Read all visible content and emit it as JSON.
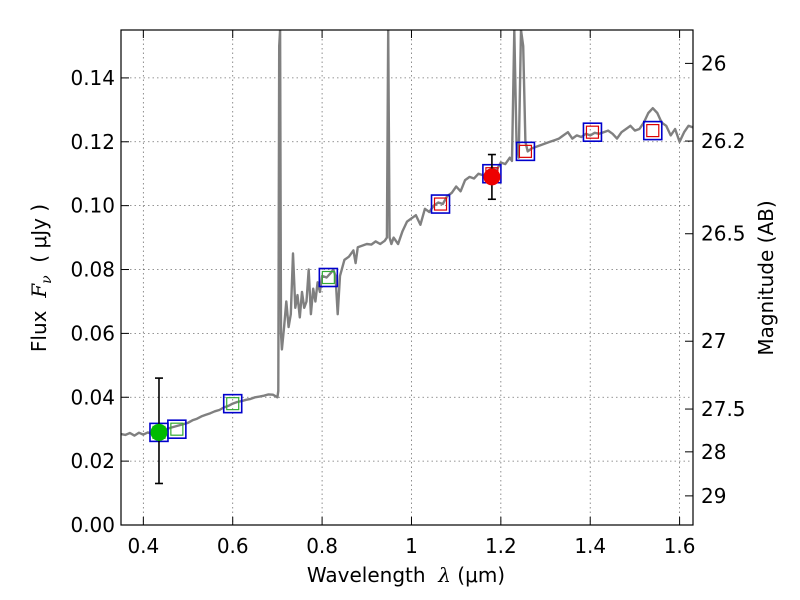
{
  "chart_data": {
    "type": "scatter",
    "xlabel": {
      "prefix": "Wavelength  ",
      "symbol": "λ",
      "suffix": " (μm)"
    },
    "ylabel": {
      "prefix": "Flux  ",
      "symbol": "F",
      "subscript": "ν",
      "suffix": "  ( μJy )"
    },
    "y2label": "Magnitude (AB)",
    "xlim": [
      0.35,
      1.63
    ],
    "ylim": [
      0.0,
      0.155
    ],
    "grid": true,
    "x_ticks": [
      {
        "value": 0.4,
        "label": "0.4"
      },
      {
        "value": 0.6,
        "label": "0.6"
      },
      {
        "value": 0.8,
        "label": "0.8"
      },
      {
        "value": 1.0,
        "label": "1"
      },
      {
        "value": 1.2,
        "label": "1.2"
      },
      {
        "value": 1.4,
        "label": "1.4"
      },
      {
        "value": 1.6,
        "label": "1.6"
      }
    ],
    "y_ticks": [
      {
        "value": 0.0,
        "label": "0.00"
      },
      {
        "value": 0.02,
        "label": "0.02"
      },
      {
        "value": 0.04,
        "label": "0.04"
      },
      {
        "value": 0.06,
        "label": "0.06"
      },
      {
        "value": 0.08,
        "label": "0.08"
      },
      {
        "value": 0.1,
        "label": "0.10"
      },
      {
        "value": 0.12,
        "label": "0.12"
      },
      {
        "value": 0.14,
        "label": "0.14"
      }
    ],
    "y2_ticks": [
      {
        "value": 26.0,
        "label": "26"
      },
      {
        "value": 26.2,
        "label": "26.2"
      },
      {
        "value": 26.5,
        "label": "26.5"
      },
      {
        "value": 27.0,
        "label": "27"
      },
      {
        "value": 27.5,
        "label": "27.5"
      },
      {
        "value": 28.0,
        "label": "28"
      },
      {
        "value": 29.0,
        "label": "29"
      }
    ],
    "colors": {
      "spectrum": "#808080",
      "model_box": "#0000cc",
      "model_inner_optical": "#33aa33",
      "model_inner_ir": "#dd0000",
      "obs_optical": "#00bb00",
      "obs_ir": "#ee0000",
      "errorbar": "#000000"
    },
    "spectrum": [
      [
        0.35,
        0.0285
      ],
      [
        0.36,
        0.0282
      ],
      [
        0.37,
        0.0288
      ],
      [
        0.38,
        0.028
      ],
      [
        0.39,
        0.0289
      ],
      [
        0.4,
        0.0283
      ],
      [
        0.41,
        0.029
      ],
      [
        0.42,
        0.0284
      ],
      [
        0.43,
        0.0292
      ],
      [
        0.44,
        0.0295
      ],
      [
        0.45,
        0.03
      ],
      [
        0.46,
        0.0304
      ],
      [
        0.47,
        0.0308
      ],
      [
        0.48,
        0.0312
      ],
      [
        0.49,
        0.0316
      ],
      [
        0.5,
        0.032
      ],
      [
        0.51,
        0.0328
      ],
      [
        0.52,
        0.0333
      ],
      [
        0.53,
        0.034
      ],
      [
        0.54,
        0.0345
      ],
      [
        0.55,
        0.035
      ],
      [
        0.56,
        0.0356
      ],
      [
        0.57,
        0.036
      ],
      [
        0.58,
        0.0368
      ],
      [
        0.59,
        0.0373
      ],
      [
        0.6,
        0.038
      ],
      [
        0.61,
        0.0385
      ],
      [
        0.62,
        0.0388
      ],
      [
        0.63,
        0.0392
      ],
      [
        0.64,
        0.0395
      ],
      [
        0.65,
        0.04
      ],
      [
        0.66,
        0.0402
      ],
      [
        0.67,
        0.0405
      ],
      [
        0.68,
        0.0409
      ],
      [
        0.69,
        0.0408
      ],
      [
        0.7,
        0.04
      ],
      [
        0.702,
        0.042
      ],
      [
        0.704,
        0.15
      ],
      [
        0.706,
        0.155
      ],
      [
        0.708,
        0.06
      ],
      [
        0.71,
        0.055
      ],
      [
        0.715,
        0.062
      ],
      [
        0.72,
        0.07
      ],
      [
        0.725,
        0.062
      ],
      [
        0.73,
        0.066
      ],
      [
        0.735,
        0.085
      ],
      [
        0.74,
        0.068
      ],
      [
        0.745,
        0.072
      ],
      [
        0.75,
        0.065
      ],
      [
        0.755,
        0.073
      ],
      [
        0.76,
        0.068
      ],
      [
        0.765,
        0.07
      ],
      [
        0.77,
        0.08
      ],
      [
        0.775,
        0.066
      ],
      [
        0.78,
        0.074
      ],
      [
        0.785,
        0.07
      ],
      [
        0.79,
        0.076
      ],
      [
        0.795,
        0.073
      ],
      [
        0.8,
        0.078
      ],
      [
        0.81,
        0.0775
      ],
      [
        0.82,
        0.079
      ],
      [
        0.825,
        0.08
      ],
      [
        0.83,
        0.078
      ],
      [
        0.835,
        0.066
      ],
      [
        0.84,
        0.078
      ],
      [
        0.85,
        0.083
      ],
      [
        0.86,
        0.084
      ],
      [
        0.87,
        0.086
      ],
      [
        0.875,
        0.082
      ],
      [
        0.88,
        0.087
      ],
      [
        0.89,
        0.0875
      ],
      [
        0.9,
        0.088
      ],
      [
        0.91,
        0.0878
      ],
      [
        0.92,
        0.0888
      ],
      [
        0.93,
        0.088
      ],
      [
        0.94,
        0.089
      ],
      [
        0.945,
        0.09
      ],
      [
        0.948,
        0.155
      ],
      [
        0.951,
        0.09
      ],
      [
        0.955,
        0.088
      ],
      [
        0.96,
        0.09
      ],
      [
        0.97,
        0.088
      ],
      [
        0.98,
        0.092
      ],
      [
        0.99,
        0.095
      ],
      [
        1.0,
        0.096
      ],
      [
        1.01,
        0.097
      ],
      [
        1.02,
        0.094
      ],
      [
        1.03,
        0.099
      ],
      [
        1.04,
        0.098
      ],
      [
        1.05,
        0.1
      ],
      [
        1.06,
        0.101
      ],
      [
        1.07,
        0.1005
      ],
      [
        1.08,
        0.103
      ],
      [
        1.09,
        0.104
      ],
      [
        1.1,
        0.106
      ],
      [
        1.11,
        0.1045
      ],
      [
        1.12,
        0.108
      ],
      [
        1.13,
        0.109
      ],
      [
        1.14,
        0.1085
      ],
      [
        1.15,
        0.11
      ],
      [
        1.16,
        0.1095
      ],
      [
        1.17,
        0.11
      ],
      [
        1.18,
        0.112
      ],
      [
        1.19,
        0.111
      ],
      [
        1.2,
        0.1135
      ],
      [
        1.21,
        0.113
      ],
      [
        1.22,
        0.115
      ],
      [
        1.225,
        0.114
      ],
      [
        1.23,
        0.155
      ],
      [
        1.235,
        0.12
      ],
      [
        1.24,
        0.115
      ],
      [
        1.245,
        0.155
      ],
      [
        1.25,
        0.15
      ],
      [
        1.255,
        0.12
      ],
      [
        1.26,
        0.117
      ],
      [
        1.27,
        0.118
      ],
      [
        1.28,
        0.1185
      ],
      [
        1.29,
        0.119
      ],
      [
        1.3,
        0.1195
      ],
      [
        1.31,
        0.12
      ],
      [
        1.32,
        0.1205
      ],
      [
        1.33,
        0.121
      ],
      [
        1.34,
        0.122
      ],
      [
        1.35,
        0.123
      ],
      [
        1.36,
        0.121
      ],
      [
        1.37,
        0.122
      ],
      [
        1.38,
        0.1215
      ],
      [
        1.39,
        0.1225
      ],
      [
        1.4,
        0.122
      ],
      [
        1.41,
        0.1228
      ],
      [
        1.42,
        0.1225
      ],
      [
        1.43,
        0.123
      ],
      [
        1.44,
        0.1235
      ],
      [
        1.45,
        0.1225
      ],
      [
        1.46,
        0.121
      ],
      [
        1.47,
        0.123
      ],
      [
        1.48,
        0.124
      ],
      [
        1.49,
        0.125
      ],
      [
        1.5,
        0.1235
      ],
      [
        1.51,
        0.124
      ],
      [
        1.52,
        0.126
      ],
      [
        1.53,
        0.129
      ],
      [
        1.54,
        0.1305
      ],
      [
        1.55,
        0.129
      ],
      [
        1.56,
        0.126
      ],
      [
        1.57,
        0.125
      ],
      [
        1.58,
        0.122
      ],
      [
        1.59,
        0.124
      ],
      [
        1.6,
        0.12
      ],
      [
        1.61,
        0.123
      ],
      [
        1.62,
        0.125
      ],
      [
        1.63,
        0.1245
      ]
    ],
    "model_points": [
      {
        "x": 0.435,
        "y": 0.029,
        "band": "optical"
      },
      {
        "x": 0.475,
        "y": 0.03,
        "band": "optical"
      },
      {
        "x": 0.6,
        "y": 0.038,
        "band": "optical"
      },
      {
        "x": 0.814,
        "y": 0.0775,
        "band": "optical"
      },
      {
        "x": 1.065,
        "y": 0.1005,
        "band": "ir"
      },
      {
        "x": 1.18,
        "y": 0.11,
        "band": "ir"
      },
      {
        "x": 1.255,
        "y": 0.117,
        "band": "ir"
      },
      {
        "x": 1.405,
        "y": 0.123,
        "band": "ir"
      },
      {
        "x": 1.54,
        "y": 0.1235,
        "band": "ir"
      }
    ],
    "observed_points": [
      {
        "x": 0.435,
        "y": 0.029,
        "yerr_low": 0.016,
        "yerr_high": 0.017,
        "band": "optical"
      },
      {
        "x": 1.18,
        "y": 0.109,
        "yerr_low": 0.007,
        "yerr_high": 0.007,
        "band": "ir"
      }
    ]
  }
}
